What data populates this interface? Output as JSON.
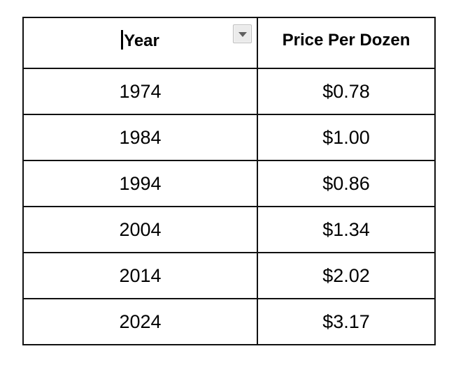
{
  "table": {
    "columns": {
      "year": "Year",
      "price": "Price Per Dozen"
    },
    "rows": [
      {
        "year": "1974",
        "price": "$0.78"
      },
      {
        "year": "1984",
        "price": "$1.00"
      },
      {
        "year": "1994",
        "price": "$0.86"
      },
      {
        "year": "2004",
        "price": "$1.34"
      },
      {
        "year": "2014",
        "price": "$2.02"
      },
      {
        "year": "2024",
        "price": "$3.17"
      }
    ]
  },
  "icons": {
    "year_sort_dropdown": "dropdown-arrow",
    "year_header_cursor": "text-insertion-caret"
  },
  "colors": {
    "background": "#ffffff",
    "table_border": "#111111",
    "text": "#000000",
    "dropdown_button_bg": "#ebebeb",
    "dropdown_button_border": "#bcbcbc",
    "dropdown_arrow": "#5f5f5f"
  }
}
